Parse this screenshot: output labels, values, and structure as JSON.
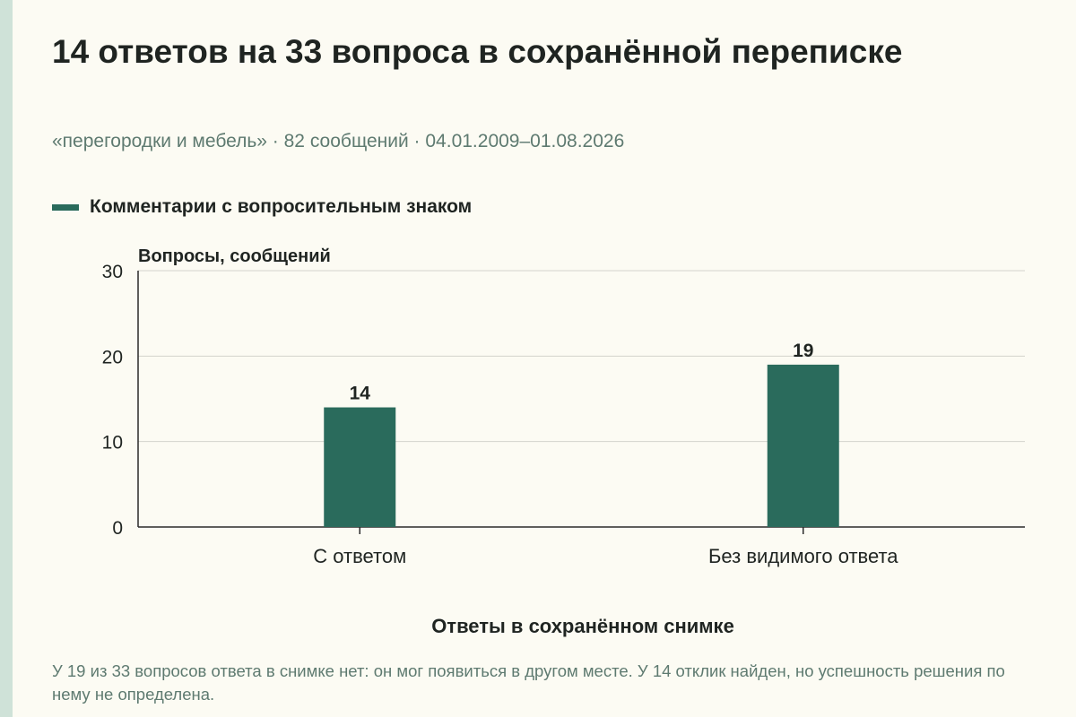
{
  "title": "14 ответов на 33 вопроса в сохранённой переписке",
  "subtitle": "«перегородки и мебель» · 82 сообщений · 04.01.2009–01.08.2026",
  "note": "У 19 из 33 вопросов ответа в снимке нет: он мог появиться в другом месте. У 14 отклик найден, но успешность решения по нему не определена.",
  "colors": {
    "background": "#fcfbf3",
    "bar": "#2a6b5c",
    "text": "#1f2421",
    "muted": "#5e7a70"
  },
  "chart_data": {
    "type": "bar",
    "categories": [
      "С ответом",
      "Без видимого ответа"
    ],
    "series": [
      {
        "name": "Комментарии с вопросительным знаком",
        "values": [
          14,
          19
        ]
      }
    ],
    "title": "",
    "ylabel": "Вопросы, сообщений",
    "xlabel": "Ответы в сохранённом снимке",
    "ylim": [
      0,
      30
    ],
    "yticks": [
      0,
      10,
      20,
      30
    ],
    "grid": true,
    "legend": "top-left"
  }
}
